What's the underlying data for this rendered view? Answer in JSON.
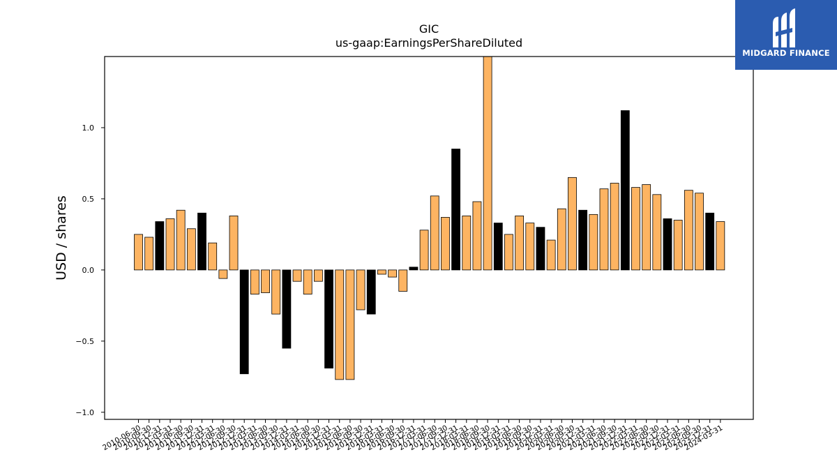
{
  "chart_data": {
    "type": "bar",
    "title": "GIC",
    "subtitle": "us-gaap:EarningsPerShareDiluted",
    "xlabel": "",
    "ylabel": "USD / shares",
    "ylim": [
      -1.05,
      1.5
    ],
    "yticks": [
      -1.0,
      -0.5,
      0.0,
      0.5,
      1.0
    ],
    "ytick_labels": [
      "−1.0",
      "−0.5",
      "0.0",
      "0.5",
      "1.0"
    ],
    "grid": false,
    "colors": {
      "quarter": "#fdb462",
      "annual": "#000000",
      "edge": "#000000"
    },
    "categories": [
      "2010-06-30",
      "2010-09-30",
      "2010-12-31",
      "2011-03-31",
      "2011-06-30",
      "2011-09-30",
      "2011-12-31",
      "2012-03-31",
      "2012-06-30",
      "2012-09-30",
      "2012-12-31",
      "2013-03-31",
      "2013-06-30",
      "2013-09-30",
      "2013-12-31",
      "2014-03-31",
      "2014-06-30",
      "2014-09-30",
      "2014-12-31",
      "2015-03-31",
      "2015-06-30",
      "2015-09-30",
      "2015-12-31",
      "2016-03-31",
      "2016-06-30",
      "2016-09-30",
      "2016-12-31",
      "2017-03-31",
      "2017-06-30",
      "2017-09-30",
      "2017-12-31",
      "2018-03-31",
      "2018-06-30",
      "2018-09-30",
      "2018-12-31",
      "2019-03-31",
      "2019-06-30",
      "2019-09-30",
      "2019-12-31",
      "2020-03-31",
      "2020-06-30",
      "2020-09-30",
      "2020-12-31",
      "2021-03-31",
      "2021-06-30",
      "2021-09-30",
      "2021-12-31",
      "2022-03-31",
      "2022-06-30",
      "2022-09-30",
      "2022-12-31",
      "2023-03-31",
      "2023-06-30",
      "2023-09-30",
      "2023-12-31",
      "2024-03-31"
    ],
    "values": [
      0.25,
      0.23,
      0.34,
      0.36,
      0.42,
      0.29,
      0.4,
      0.19,
      -0.06,
      0.38,
      -0.73,
      -0.17,
      -0.16,
      -0.31,
      -0.55,
      -0.08,
      -0.17,
      -0.08,
      -0.69,
      -0.77,
      -0.77,
      -0.28,
      -0.31,
      -0.03,
      -0.05,
      -0.15,
      0.02,
      0.28,
      0.52,
      0.37,
      0.85,
      0.38,
      0.48,
      1.5,
      0.33,
      0.25,
      0.38,
      0.33,
      0.3,
      0.21,
      0.43,
      0.65,
      0.42,
      0.39,
      0.57,
      0.61,
      1.12,
      0.58,
      0.6,
      0.53,
      0.36,
      0.35,
      0.56,
      0.54,
      0.4,
      0.34
    ],
    "bar_kind": [
      "quarter",
      "quarter",
      "annual",
      "quarter",
      "quarter",
      "quarter",
      "annual",
      "quarter",
      "quarter",
      "quarter",
      "annual",
      "quarter",
      "quarter",
      "quarter",
      "annual",
      "quarter",
      "quarter",
      "quarter",
      "annual",
      "quarter",
      "quarter",
      "quarter",
      "annual",
      "quarter",
      "quarter",
      "quarter",
      "annual",
      "quarter",
      "quarter",
      "quarter",
      "annual",
      "quarter",
      "quarter",
      "quarter",
      "annual",
      "quarter",
      "quarter",
      "quarter",
      "annual",
      "quarter",
      "quarter",
      "quarter",
      "annual",
      "quarter",
      "quarter",
      "quarter",
      "annual",
      "quarter",
      "quarter",
      "quarter",
      "annual",
      "quarter",
      "quarter",
      "quarter",
      "annual",
      "quarter"
    ]
  },
  "logo": {
    "text": "MIDGARD FINANCE",
    "icon": "midgard-logo-icon"
  }
}
